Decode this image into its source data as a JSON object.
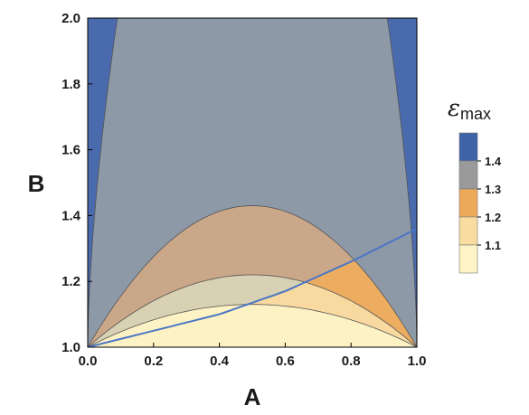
{
  "chart_data": {
    "type": "contour",
    "title": "",
    "xlabel": "A",
    "ylabel": "B",
    "xlim": [
      0.0,
      1.0
    ],
    "ylim": [
      1.0,
      2.0
    ],
    "x_ticks": [
      "0.0",
      "0.2",
      "0.4",
      "0.6",
      "0.8",
      "1.0"
    ],
    "y_ticks": [
      "1.0",
      "1.2",
      "1.4",
      "1.6",
      "1.8",
      "2.0"
    ],
    "legend": {
      "title": "ε",
      "subscript": "max",
      "placement": "right",
      "levels": [
        {
          "label": "1.4",
          "color": "#3f63a7"
        },
        {
          "label": "1.3",
          "color": "#9a9a9a"
        },
        {
          "label": "1.2",
          "color": "#eda95a"
        },
        {
          "label": "1.1",
          "color": "#f8dca0"
        },
        {
          "label": "",
          "color": "#fdf4c6"
        }
      ]
    },
    "contours": [
      {
        "level": 1.1,
        "peak_B": 1.13
      },
      {
        "level": 1.2,
        "peak_B": 1.22
      },
      {
        "level": 1.3,
        "peak_B": 1.43
      }
    ],
    "region_fill_colors": {
      "below_1.1": "#fdf2c4",
      "band_1.1_1.2_left": "#d9d1b3",
      "band_1.1_1.2_right": "#f8daa0",
      "band_1.2_1.3_left": "#c9a788",
      "band_1.2_1.3_right": "#ecad60",
      "band_1.3_1.4": "#8e99a8",
      "above_1.4": "#4a6aae",
      "boundary_curve": "#4b76c5"
    },
    "edge_curve_1.4": {
      "A_at_B_1": 0.0,
      "A_at_B_2": 0.09
    },
    "boundary_curve": {
      "A": [
        0.0,
        0.2,
        0.4,
        0.6,
        0.8,
        1.0
      ],
      "B": [
        1.0,
        1.05,
        1.1,
        1.17,
        1.26,
        1.36
      ]
    }
  }
}
